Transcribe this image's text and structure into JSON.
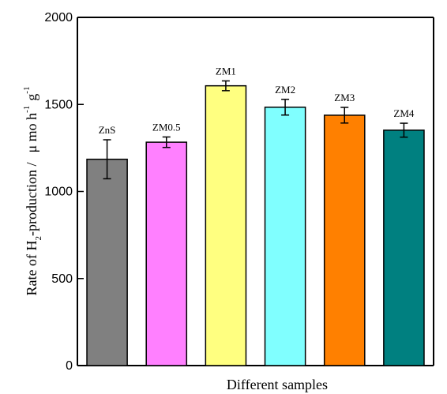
{
  "chart_data": {
    "type": "bar",
    "categories": [
      "ZnS",
      "ZM0.5",
      "ZM1",
      "ZM2",
      "ZM3",
      "ZM4"
    ],
    "values": [
      1185,
      1283,
      1607,
      1484,
      1438,
      1352
    ],
    "errors": [
      112,
      30,
      28,
      45,
      45,
      40
    ],
    "colors": [
      "#808080",
      "#ff80ff",
      "#ffff80",
      "#80ffff",
      "#ff8000",
      "#008080"
    ],
    "ylim": [
      0,
      2000
    ],
    "yticks": [
      0,
      500,
      1000,
      1500,
      2000
    ],
    "xlabel": "Different samples",
    "ylabel": {
      "part1": "Rate of H",
      "sub1": "2",
      "part2": "-production /",
      "unit1": "μ mo h",
      "sup1": "-1",
      "unit2": "g",
      "sup2": "-1"
    },
    "legend": "none",
    "grid": false
  }
}
